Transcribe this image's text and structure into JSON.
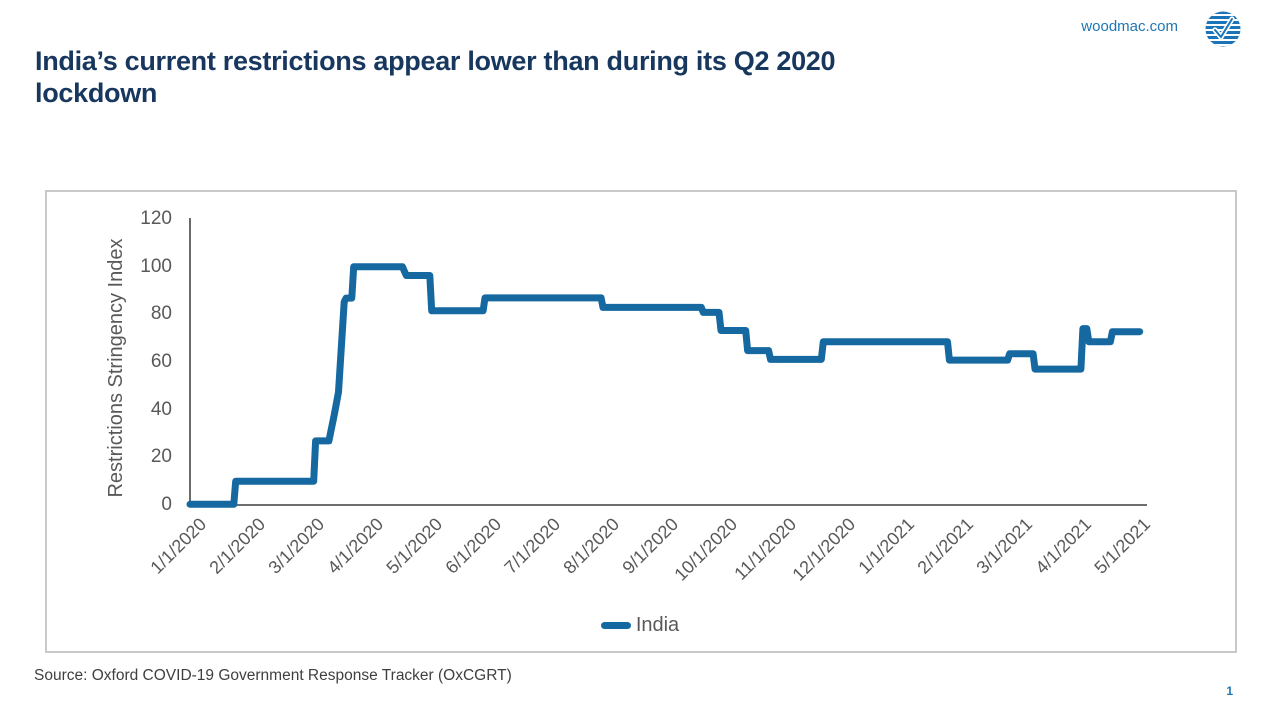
{
  "slide": {
    "header": {
      "website": "woodmac.com",
      "logo": "woodmac-logo"
    },
    "title_lines": [
      "India’s current restrictions appear lower than during its Q2 2020",
      "lockdown"
    ],
    "footer": {
      "source": "Source: Oxford COVID-19 Government Response Tracker (OxCGRT)",
      "page_number": "1"
    }
  },
  "colors": {
    "title_navy": "#17375e",
    "link_blue": "#2076b4",
    "series_blue": "#1569a0",
    "axis_text_gray": "#595959",
    "axis_line_gray": "#595959",
    "frame_border_gray": "#c9c9c9",
    "logo_blue": "#1b74b8"
  },
  "chart_data": {
    "type": "line",
    "title": "",
    "xlabel": "",
    "ylabel": "Restrictions Stringency Index",
    "ylim": [
      0,
      120
    ],
    "ytick_interval": 20,
    "yticks": [
      0,
      20,
      40,
      60,
      80,
      100,
      120
    ],
    "x_tick_labels": [
      "1/1/2020",
      "2/1/2020",
      "3/1/2020",
      "4/1/2020",
      "5/1/2020",
      "6/1/2020",
      "7/1/2020",
      "8/1/2020",
      "9/1/2020",
      "10/1/2020",
      "11/1/2020",
      "12/1/2020",
      "1/1/2021",
      "2/1/2021",
      "3/1/2021",
      "4/1/2021",
      "5/1/2021"
    ],
    "grid": false,
    "legend_position": "bottom",
    "series": [
      {
        "name": "India",
        "color": "#1569a0",
        "points": [
          [
            "1/1/2020",
            0.3
          ],
          [
            "1/24/2020",
            0.3
          ],
          [
            "1/25/2020",
            10.0
          ],
          [
            "3/4/2020",
            10.0
          ],
          [
            "3/5/2020",
            26.9
          ],
          [
            "3/12/2020",
            26.9
          ],
          [
            "3/15/2020",
            38.6
          ],
          [
            "3/17/2020",
            47.4
          ],
          [
            "3/20/2020",
            85.2
          ],
          [
            "3/21/2020",
            86.8
          ],
          [
            "3/24/2020",
            86.8
          ],
          [
            "3/25/2020",
            100
          ],
          [
            "4/19/2020",
            100
          ],
          [
            "4/21/2020",
            96.3
          ],
          [
            "5/3/2020",
            96.3
          ],
          [
            "5/4/2020",
            81.5
          ],
          [
            "5/31/2020",
            81.5
          ],
          [
            "6/1/2020",
            86.9
          ],
          [
            "7/31/2020",
            86.9
          ],
          [
            "8/1/2020",
            82.9
          ],
          [
            "9/21/2020",
            82.9
          ],
          [
            "9/22/2020",
            80.8
          ],
          [
            "9/30/2020",
            80.8
          ],
          [
            "10/1/2020",
            73.2
          ],
          [
            "10/14/2020",
            73.2
          ],
          [
            "10/15/2020",
            64.8
          ],
          [
            "10/26/2020",
            64.8
          ],
          [
            "10/27/2020",
            61.1
          ],
          [
            "11/22/2020",
            61.1
          ],
          [
            "11/23/2020",
            68.5
          ],
          [
            "1/27/2021",
            68.5
          ],
          [
            "1/28/2021",
            60.8
          ],
          [
            "2/25/2021",
            60.8
          ],
          [
            "2/26/2021",
            63.5
          ],
          [
            "3/10/2021",
            63.5
          ],
          [
            "3/11/2021",
            57.0
          ],
          [
            "4/4/2021",
            57.0
          ],
          [
            "4/5/2021",
            74.0
          ],
          [
            "4/7/2021",
            74.0
          ],
          [
            "4/8/2021",
            68.5
          ],
          [
            "4/19/2021",
            68.5
          ],
          [
            "4/20/2021",
            72.7
          ],
          [
            "5/4/2021",
            72.7
          ]
        ]
      }
    ]
  }
}
